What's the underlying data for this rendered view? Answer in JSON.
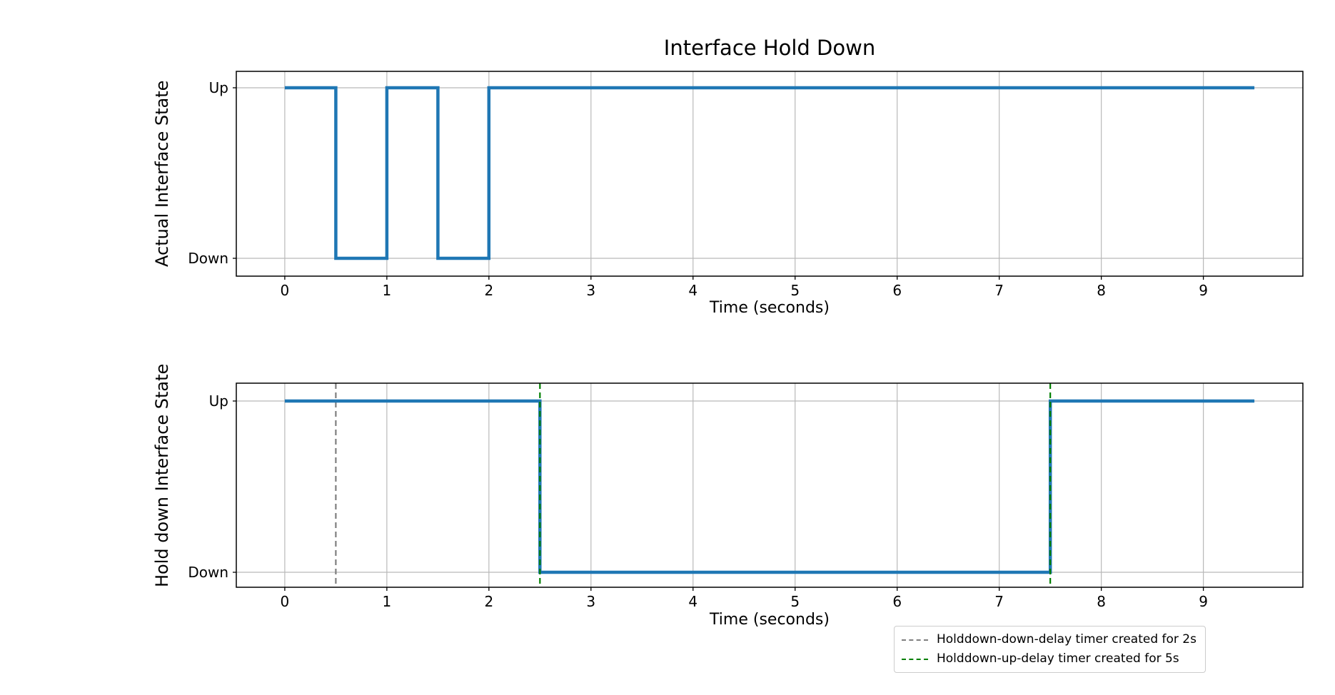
{
  "figure_title": "Interface Hold Down",
  "colors": {
    "line": "#1f77b4",
    "holddown_down_timer": "#7f7f7f",
    "holddown_up_timer": "#007f00",
    "grid": "#b9b9b9",
    "spine": "#000000"
  },
  "chart_data": [
    {
      "type": "line",
      "subtype": "step",
      "title": "Interface Hold Down",
      "xlabel": "Time (seconds)",
      "ylabel": "Actual Interface State",
      "xlim": [
        -0.475,
        9.975
      ],
      "xticks": [
        0,
        1,
        2,
        3,
        4,
        5,
        6,
        7,
        8,
        9
      ],
      "yticklabels": [
        "Up",
        "Down"
      ],
      "grid": true,
      "line_color": "#1f77b4",
      "points": [
        [
          0,
          "Up"
        ],
        [
          0.5,
          "Up"
        ],
        [
          0.5,
          "Down"
        ],
        [
          1,
          "Down"
        ],
        [
          1,
          "Up"
        ],
        [
          1.5,
          "Up"
        ],
        [
          1.5,
          "Down"
        ],
        [
          2,
          "Down"
        ],
        [
          2,
          "Up"
        ],
        [
          9.5,
          "Up"
        ]
      ],
      "vlines": []
    },
    {
      "type": "line",
      "subtype": "step",
      "title": "",
      "xlabel": "Time (seconds)",
      "ylabel": "Hold down Interface State",
      "xlim": [
        -0.475,
        9.975
      ],
      "xticks": [
        0,
        1,
        2,
        3,
        4,
        5,
        6,
        7,
        8,
        9
      ],
      "yticklabels": [
        "Up",
        "Down"
      ],
      "grid": true,
      "line_color": "#1f77b4",
      "points": [
        [
          0,
          "Up"
        ],
        [
          2.5,
          "Up"
        ],
        [
          2.5,
          "Down"
        ],
        [
          7.5,
          "Down"
        ],
        [
          7.5,
          "Up"
        ],
        [
          9.5,
          "Up"
        ]
      ],
      "vlines": [
        {
          "x": 0.5,
          "color": "#7f7f7f",
          "style": "dashed",
          "layer": "under"
        },
        {
          "x": 2.5,
          "color": "#007f00",
          "style": "dashed",
          "layer": "over"
        },
        {
          "x": 7.5,
          "color": "#007f00",
          "style": "dashed",
          "layer": "over"
        }
      ],
      "legend": {
        "position": "below-right",
        "entries": [
          {
            "color": "#7f7f7f",
            "dash": "dashed",
            "label": "Holddown-down-delay timer created for 2s"
          },
          {
            "color": "#007f00",
            "dash": "dashed",
            "label": "Holddown-up-delay timer created for 5s"
          }
        ]
      }
    }
  ]
}
